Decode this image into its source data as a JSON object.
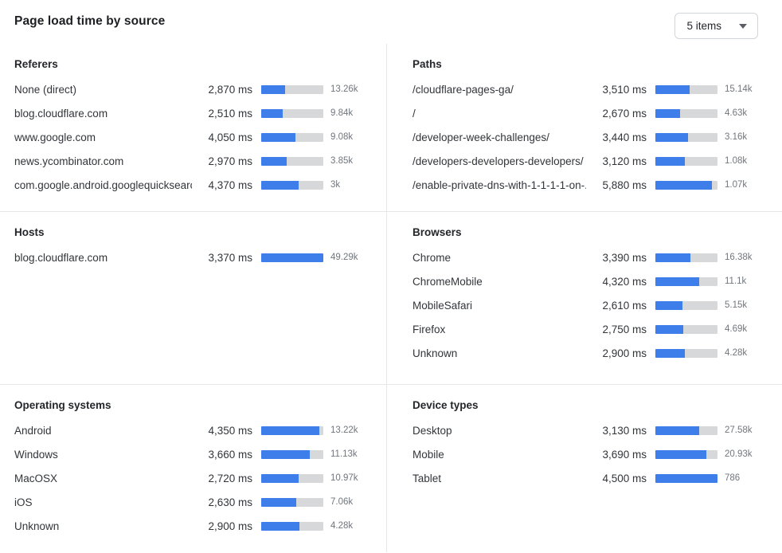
{
  "header": {
    "title": "Page load time by source",
    "items_dropdown": {
      "label": "5 items"
    }
  },
  "colors": {
    "bar_fill": "#3d7eeb",
    "bar_track": "#d7d8d9"
  },
  "sections": [
    {
      "id": "referers",
      "title": "Referers",
      "rows": [
        {
          "label": "None (direct)",
          "time": "2,870 ms",
          "count": "13.26k",
          "bar_pct": 39
        },
        {
          "label": "blog.cloudflare.com",
          "time": "2,510 ms",
          "count": "9.84k",
          "bar_pct": 34
        },
        {
          "label": "www.google.com",
          "time": "4,050 ms",
          "count": "9.08k",
          "bar_pct": 55
        },
        {
          "label": "news.ycombinator.com",
          "time": "2,970 ms",
          "count": "3.85k",
          "bar_pct": 41
        },
        {
          "label": "com.google.android.googlequicksearc...",
          "time": "4,370 ms",
          "count": "3k",
          "bar_pct": 60
        }
      ]
    },
    {
      "id": "paths",
      "title": "Paths",
      "rows": [
        {
          "label": "/cloudflare-pages-ga/",
          "time": "3,510 ms",
          "count": "15.14k",
          "bar_pct": 55
        },
        {
          "label": "/",
          "time": "2,670 ms",
          "count": "4.63k",
          "bar_pct": 40
        },
        {
          "label": "/developer-week-challenges/",
          "time": "3,440 ms",
          "count": "3.16k",
          "bar_pct": 53
        },
        {
          "label": "/developers-developers-developers/",
          "time": "3,120 ms",
          "count": "1.08k",
          "bar_pct": 48
        },
        {
          "label": "/enable-private-dns-with-1-1-1-1-on-...",
          "time": "5,880 ms",
          "count": "1.07k",
          "bar_pct": 91
        }
      ]
    },
    {
      "id": "hosts",
      "title": "Hosts",
      "rows": [
        {
          "label": "blog.cloudflare.com",
          "time": "3,370 ms",
          "count": "49.29k",
          "bar_pct": 100
        }
      ]
    },
    {
      "id": "browsers",
      "title": "Browsers",
      "rows": [
        {
          "label": "Chrome",
          "time": "3,390 ms",
          "count": "16.38k",
          "bar_pct": 57
        },
        {
          "label": "ChromeMobile",
          "time": "4,320 ms",
          "count": "11.1k",
          "bar_pct": 71
        },
        {
          "label": "MobileSafari",
          "time": "2,610 ms",
          "count": "5.15k",
          "bar_pct": 43
        },
        {
          "label": "Firefox",
          "time": "2,750 ms",
          "count": "4.69k",
          "bar_pct": 45
        },
        {
          "label": "Unknown",
          "time": "2,900 ms",
          "count": "4.28k",
          "bar_pct": 47
        }
      ]
    },
    {
      "id": "operating-systems",
      "title": "Operating systems",
      "rows": [
        {
          "label": "Android",
          "time": "4,350 ms",
          "count": "13.22k",
          "bar_pct": 93
        },
        {
          "label": "Windows",
          "time": "3,660 ms",
          "count": "11.13k",
          "bar_pct": 78
        },
        {
          "label": "MacOSX",
          "time": "2,720 ms",
          "count": "10.97k",
          "bar_pct": 60
        },
        {
          "label": "iOS",
          "time": "2,630 ms",
          "count": "7.06k",
          "bar_pct": 56
        },
        {
          "label": "Unknown",
          "time": "2,900 ms",
          "count": "4.28k",
          "bar_pct": 62
        }
      ]
    },
    {
      "id": "device-types",
      "title": "Device types",
      "rows": [
        {
          "label": "Desktop",
          "time": "3,130 ms",
          "count": "27.58k",
          "bar_pct": 70
        },
        {
          "label": "Mobile",
          "time": "3,690 ms",
          "count": "20.93k",
          "bar_pct": 82
        },
        {
          "label": "Tablet",
          "time": "4,500 ms",
          "count": "786",
          "bar_pct": 100
        }
      ]
    }
  ]
}
